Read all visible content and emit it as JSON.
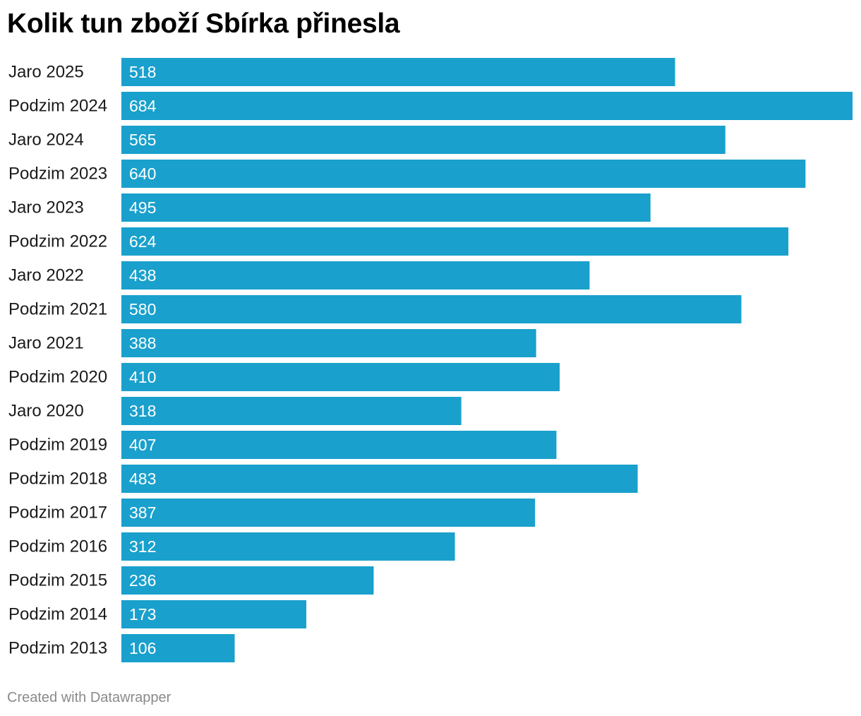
{
  "chart_data": {
    "type": "bar",
    "orientation": "horizontal",
    "title": "Kolik tun zboží Sbírka přinesla",
    "categories": [
      "Jaro 2025",
      "Podzim 2024",
      "Jaro 2024",
      "Podzim 2023",
      "Jaro 2023",
      "Podzim 2022",
      "Jaro 2022",
      "Podzim 2021",
      "Jaro 2021",
      "Podzim 2020",
      "Jaro 2020",
      "Podzim 2019",
      "Podzim 2018",
      "Podzim 2017",
      "Podzim 2016",
      "Podzim 2015",
      "Podzim 2014",
      "Podzim 2013"
    ],
    "values": [
      518,
      684,
      565,
      640,
      495,
      624,
      438,
      580,
      388,
      410,
      318,
      407,
      483,
      387,
      312,
      236,
      173,
      106
    ],
    "xlim": [
      0,
      684
    ],
    "grid": false,
    "legend": "none",
    "bar_color": "#1aa0cc",
    "data_labels": "inside-left"
  },
  "footer": {
    "credit": "Created with Datawrapper"
  }
}
